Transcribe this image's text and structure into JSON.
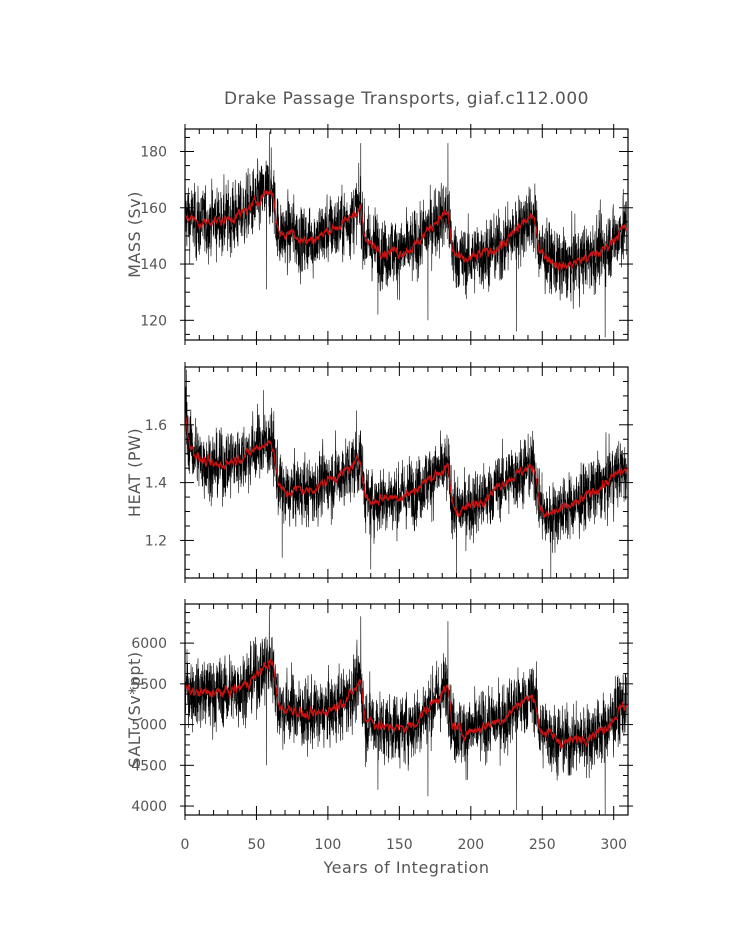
{
  "chart_data": {
    "type": "line",
    "title": "Drake Passage Transports, giaf.c112.000",
    "xlabel": "Years of Integration",
    "xlim": [
      0,
      310
    ],
    "xticks": [
      0,
      50,
      100,
      150,
      200,
      250,
      300
    ],
    "series_colors": {
      "raw": "#000000",
      "smoothed": "#cc1111"
    },
    "panels": [
      {
        "ylabel": "MASS (Sv)",
        "ylim": [
          113,
          188
        ],
        "yticks": [
          120,
          140,
          160,
          180
        ],
        "smoothed": {
          "x": [
            0,
            5,
            10,
            15,
            20,
            25,
            30,
            35,
            40,
            45,
            50,
            55,
            60,
            62,
            65,
            70,
            75,
            80,
            85,
            90,
            95,
            100,
            105,
            110,
            115,
            120,
            123,
            126,
            130,
            135,
            140,
            145,
            150,
            155,
            160,
            165,
            170,
            175,
            180,
            184,
            187,
            190,
            195,
            200,
            205,
            210,
            215,
            220,
            225,
            230,
            235,
            240,
            245,
            248,
            252,
            255,
            260,
            265,
            270,
            275,
            280,
            285,
            290,
            295,
            300,
            305,
            309
          ],
          "y": [
            158,
            156,
            154,
            155,
            156,
            155,
            156,
            157,
            158,
            160,
            162,
            165,
            166,
            164,
            152,
            150,
            152,
            149,
            148,
            149,
            150,
            152,
            153,
            154,
            156,
            159,
            160,
            148,
            147,
            146,
            144,
            145,
            144,
            145,
            146,
            149,
            152,
            155,
            157,
            158,
            145,
            143,
            141,
            142,
            143,
            144,
            145,
            146,
            148,
            151,
            154,
            156,
            156,
            145,
            143,
            142,
            140,
            139,
            140,
            141,
            142,
            143,
            144,
            146,
            149,
            152,
            153
          ]
        },
        "raw": {
          "sd": 8.0,
          "spikes_high": [
            [
              59,
              187
            ],
            [
              123,
              183
            ],
            [
              184,
              183
            ]
          ],
          "spikes_low": [
            [
              57,
              131
            ],
            [
              135,
              122
            ],
            [
              170,
              120
            ],
            [
              232,
              116
            ],
            [
              294,
              114
            ]
          ]
        }
      },
      {
        "ylabel": "HEAT (PW)",
        "ylim": [
          1.07,
          1.8
        ],
        "yticks": [
          1.2,
          1.4,
          1.6
        ],
        "smoothed": {
          "x": [
            0,
            2,
            5,
            10,
            15,
            20,
            25,
            30,
            35,
            40,
            45,
            50,
            55,
            60,
            62,
            65,
            70,
            75,
            80,
            85,
            90,
            95,
            100,
            105,
            110,
            115,
            120,
            123,
            126,
            130,
            135,
            140,
            145,
            150,
            155,
            160,
            165,
            170,
            175,
            180,
            184,
            187,
            190,
            195,
            200,
            205,
            210,
            215,
            220,
            225,
            230,
            235,
            240,
            245,
            248,
            252,
            255,
            260,
            265,
            270,
            275,
            280,
            285,
            290,
            295,
            300,
            305,
            309
          ],
          "y": [
            1.64,
            1.56,
            1.52,
            1.48,
            1.47,
            1.46,
            1.46,
            1.47,
            1.48,
            1.49,
            1.5,
            1.52,
            1.53,
            1.54,
            1.52,
            1.4,
            1.36,
            1.37,
            1.38,
            1.37,
            1.38,
            1.39,
            1.41,
            1.42,
            1.43,
            1.45,
            1.47,
            1.48,
            1.36,
            1.33,
            1.34,
            1.35,
            1.35,
            1.35,
            1.36,
            1.37,
            1.39,
            1.41,
            1.43,
            1.44,
            1.45,
            1.33,
            1.3,
            1.31,
            1.32,
            1.33,
            1.35,
            1.37,
            1.39,
            1.41,
            1.42,
            1.44,
            1.45,
            1.45,
            1.33,
            1.28,
            1.29,
            1.3,
            1.31,
            1.32,
            1.33,
            1.35,
            1.37,
            1.38,
            1.4,
            1.42,
            1.44,
            1.44
          ]
        },
        "raw": {
          "sd": 0.075,
          "spikes_high": [
            [
              1,
              1.79
            ],
            [
              55,
              1.72
            ],
            [
              120,
              1.65
            ]
          ],
          "spikes_low": [
            [
              68,
              1.14
            ],
            [
              130,
              1.1
            ],
            [
              190,
              1.08
            ],
            [
              256,
              1.07
            ]
          ]
        }
      },
      {
        "ylabel": "SALT (Sv*ppt)",
        "ylim": [
          3890,
          6480
        ],
        "yticks": [
          4000,
          4500,
          5000,
          5500,
          6000
        ],
        "smoothed": {
          "x": [
            0,
            5,
            10,
            15,
            20,
            25,
            30,
            35,
            40,
            45,
            50,
            55,
            60,
            62,
            65,
            70,
            75,
            80,
            85,
            90,
            95,
            100,
            105,
            110,
            115,
            120,
            123,
            126,
            130,
            135,
            140,
            145,
            150,
            155,
            160,
            165,
            170,
            175,
            180,
            184,
            187,
            190,
            195,
            200,
            205,
            210,
            215,
            220,
            225,
            230,
            235,
            240,
            245,
            248,
            252,
            255,
            260,
            265,
            270,
            275,
            280,
            285,
            290,
            295,
            300,
            305,
            309
          ],
          "y": [
            5450,
            5400,
            5380,
            5390,
            5400,
            5390,
            5400,
            5430,
            5470,
            5530,
            5600,
            5700,
            5760,
            5700,
            5250,
            5180,
            5200,
            5150,
            5100,
            5120,
            5140,
            5180,
            5220,
            5280,
            5350,
            5450,
            5550,
            5080,
            5050,
            5000,
            4950,
            4980,
            4950,
            4970,
            5000,
            5100,
            5200,
            5300,
            5380,
            5450,
            5000,
            4950,
            4900,
            4920,
            4950,
            4980,
            5020,
            5050,
            5100,
            5200,
            5280,
            5320,
            5330,
            4950,
            4900,
            4880,
            4820,
            4780,
            4800,
            4820,
            4850,
            4880,
            4920,
            4980,
            5080,
            5200,
            5250
          ]
        },
        "raw": {
          "sd": 280,
          "spikes_high": [
            [
              59,
              6460
            ],
            [
              123,
              6330
            ],
            [
              184,
              6270
            ]
          ],
          "spikes_low": [
            [
              57,
              4500
            ],
            [
              135,
              4200
            ],
            [
              170,
              4120
            ],
            [
              232,
              3950
            ],
            [
              294,
              3900
            ]
          ]
        }
      }
    ]
  }
}
